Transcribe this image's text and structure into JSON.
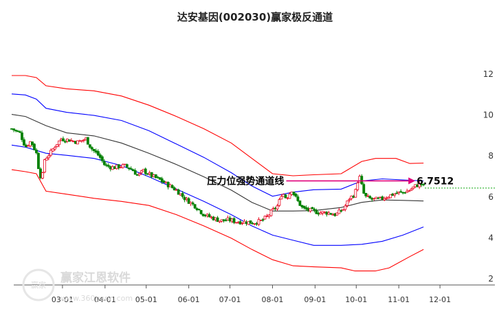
{
  "watermark": {
    "brand": "赢家江恩软件",
    "url": "www.360gann.com",
    "seal_text": "赢家"
  },
  "chart_data": {
    "type": "candlestick",
    "title": "达安基因(002030)赢家极反通道",
    "xlabel": "",
    "ylabel": "",
    "ylim": [
      2,
      12
    ],
    "y_ticks": [
      2,
      4,
      6,
      8,
      10,
      12
    ],
    "y_tick_labels": [
      "2",
      "4",
      "6",
      "8",
      "10",
      "12"
    ],
    "x_ticks": [
      {
        "label": "03-01",
        "day": 37
      },
      {
        "label": "04-01",
        "day": 68
      },
      {
        "label": "05-01",
        "day": 98
      },
      {
        "label": "06-01",
        "day": 129
      },
      {
        "label": "07-01",
        "day": 159
      },
      {
        "label": "08-01",
        "day": 190
      },
      {
        "label": "09-01",
        "day": 221
      },
      {
        "label": "10-01",
        "day": 251
      },
      {
        "label": "11-01",
        "day": 282
      },
      {
        "label": "12-01",
        "day": 312
      }
    ],
    "x_range": [
      0,
      355
    ],
    "colors": {
      "up": "#e8001c",
      "down": "#008000",
      "outer_band": "#ff0000",
      "inner_band": "#0000ff",
      "middle_line": "#333333",
      "arrow": "#e0007a",
      "last_price_line": "#00a000"
    },
    "series": [
      {
        "name": "",
        "role": "outer_upper",
        "color": "#ff0000",
        "points": [
          [
            0,
            11.9
          ],
          [
            10,
            11.9
          ],
          [
            18,
            11.8
          ],
          [
            25,
            11.4
          ],
          [
            40,
            11.25
          ],
          [
            60,
            11.15
          ],
          [
            80,
            10.9
          ],
          [
            100,
            10.45
          ],
          [
            120,
            9.9
          ],
          [
            140,
            9.3
          ],
          [
            160,
            8.6
          ],
          [
            175,
            7.85
          ],
          [
            190,
            7.1
          ],
          [
            205,
            7.0
          ],
          [
            220,
            7.05
          ],
          [
            240,
            7.1
          ],
          [
            255,
            7.7
          ],
          [
            265,
            7.85
          ],
          [
            280,
            7.85
          ],
          [
            290,
            7.6
          ],
          [
            300,
            7.62
          ]
        ]
      },
      {
        "name": "",
        "role": "inner_upper",
        "color": "#0000ff",
        "points": [
          [
            0,
            11.0
          ],
          [
            10,
            10.95
          ],
          [
            18,
            10.75
          ],
          [
            25,
            10.3
          ],
          [
            40,
            10.1
          ],
          [
            60,
            9.95
          ],
          [
            80,
            9.7
          ],
          [
            100,
            9.2
          ],
          [
            120,
            8.55
          ],
          [
            140,
            7.9
          ],
          [
            160,
            7.15
          ],
          [
            175,
            6.5
          ],
          [
            190,
            6.0
          ],
          [
            205,
            6.2
          ],
          [
            220,
            6.32
          ],
          [
            240,
            6.35
          ],
          [
            255,
            6.75
          ],
          [
            270,
            6.85
          ],
          [
            285,
            6.8
          ],
          [
            300,
            6.75
          ]
        ]
      },
      {
        "name": "",
        "role": "middle",
        "color": "#333333",
        "points": [
          [
            0,
            10.0
          ],
          [
            10,
            9.9
          ],
          [
            25,
            9.45
          ],
          [
            40,
            9.1
          ],
          [
            60,
            8.95
          ],
          [
            80,
            8.6
          ],
          [
            100,
            8.1
          ],
          [
            120,
            7.55
          ],
          [
            140,
            6.95
          ],
          [
            160,
            6.3
          ],
          [
            175,
            5.7
          ],
          [
            190,
            5.28
          ],
          [
            205,
            5.28
          ],
          [
            220,
            5.3
          ],
          [
            240,
            5.45
          ],
          [
            255,
            5.7
          ],
          [
            270,
            5.82
          ],
          [
            285,
            5.8
          ],
          [
            300,
            5.77
          ]
        ]
      },
      {
        "name": "",
        "role": "inner_lower",
        "color": "#0000ff",
        "points": [
          [
            0,
            8.5
          ],
          [
            10,
            8.4
          ],
          [
            25,
            8.1
          ],
          [
            40,
            8.0
          ],
          [
            60,
            7.85
          ],
          [
            80,
            7.5
          ],
          [
            100,
            6.95
          ],
          [
            120,
            6.35
          ],
          [
            140,
            5.75
          ],
          [
            160,
            5.1
          ],
          [
            175,
            4.55
          ],
          [
            190,
            4.1
          ],
          [
            205,
            3.85
          ],
          [
            220,
            3.6
          ],
          [
            240,
            3.6
          ],
          [
            255,
            3.65
          ],
          [
            270,
            3.8
          ],
          [
            285,
            4.1
          ],
          [
            300,
            4.5
          ]
        ]
      },
      {
        "name": "",
        "role": "outer_lower",
        "color": "#ff0000",
        "points": [
          [
            0,
            7.3
          ],
          [
            10,
            7.2
          ],
          [
            18,
            7.1
          ],
          [
            25,
            6.25
          ],
          [
            40,
            6.1
          ],
          [
            60,
            5.9
          ],
          [
            80,
            5.75
          ],
          [
            100,
            5.55
          ],
          [
            120,
            5.1
          ],
          [
            140,
            4.55
          ],
          [
            160,
            3.95
          ],
          [
            175,
            3.4
          ],
          [
            190,
            2.9
          ],
          [
            205,
            2.6
          ],
          [
            220,
            2.55
          ],
          [
            240,
            2.5
          ],
          [
            250,
            2.35
          ],
          [
            265,
            2.35
          ],
          [
            275,
            2.5
          ],
          [
            290,
            3.05
          ],
          [
            300,
            3.4
          ]
        ]
      }
    ],
    "candles": {
      "price_path": [
        [
          0,
          9.3
        ],
        [
          6,
          9.1
        ],
        [
          10,
          8.4
        ],
        [
          14,
          8.7
        ],
        [
          18,
          8.1
        ],
        [
          20,
          7.2
        ],
        [
          22,
          6.8
        ],
        [
          24,
          7.8
        ],
        [
          28,
          8.1
        ],
        [
          32,
          8.5
        ],
        [
          36,
          8.8
        ],
        [
          42,
          8.75
        ],
        [
          48,
          8.65
        ],
        [
          54,
          8.8
        ],
        [
          58,
          8.35
        ],
        [
          64,
          7.95
        ],
        [
          68,
          7.5
        ],
        [
          74,
          7.4
        ],
        [
          82,
          7.5
        ],
        [
          88,
          7.3
        ],
        [
          92,
          7.0
        ],
        [
          96,
          7.25
        ],
        [
          102,
          7.0
        ],
        [
          108,
          6.8
        ],
        [
          114,
          6.55
        ],
        [
          120,
          6.3
        ],
        [
          126,
          5.9
        ],
        [
          130,
          5.7
        ],
        [
          134,
          5.5
        ],
        [
          140,
          5.1
        ],
        [
          146,
          4.95
        ],
        [
          152,
          4.8
        ],
        [
          158,
          4.85
        ],
        [
          164,
          4.75
        ],
        [
          170,
          4.75
        ],
        [
          176,
          4.7
        ],
        [
          182,
          4.8
        ],
        [
          186,
          5.0
        ],
        [
          190,
          5.3
        ],
        [
          194,
          5.55
        ],
        [
          197,
          6.2
        ],
        [
          200,
          5.9
        ],
        [
          204,
          6.3
        ],
        [
          208,
          5.8
        ],
        [
          212,
          5.4
        ],
        [
          218,
          5.3
        ],
        [
          224,
          5.2
        ],
        [
          230,
          5.2
        ],
        [
          236,
          5.1
        ],
        [
          242,
          5.4
        ],
        [
          246,
          5.9
        ],
        [
          250,
          6.1
        ],
        [
          253,
          7.05
        ],
        [
          257,
          6.0
        ],
        [
          262,
          5.85
        ],
        [
          268,
          5.85
        ],
        [
          274,
          6.0
        ],
        [
          280,
          6.15
        ],
        [
          286,
          6.2
        ],
        [
          290,
          6.3
        ],
        [
          294,
          6.5
        ],
        [
          298,
          6.6
        ],
        [
          300,
          6.5
        ]
      ],
      "days_per_candle": 1.5
    },
    "annotations": [
      {
        "text": "压力位强势通道线",
        "role": "resistance_channel_label"
      },
      {
        "text": "6.7512",
        "value": 6.7512,
        "role": "resistance_value"
      }
    ],
    "last_price": 6.4,
    "grid": false,
    "legend": "none"
  }
}
